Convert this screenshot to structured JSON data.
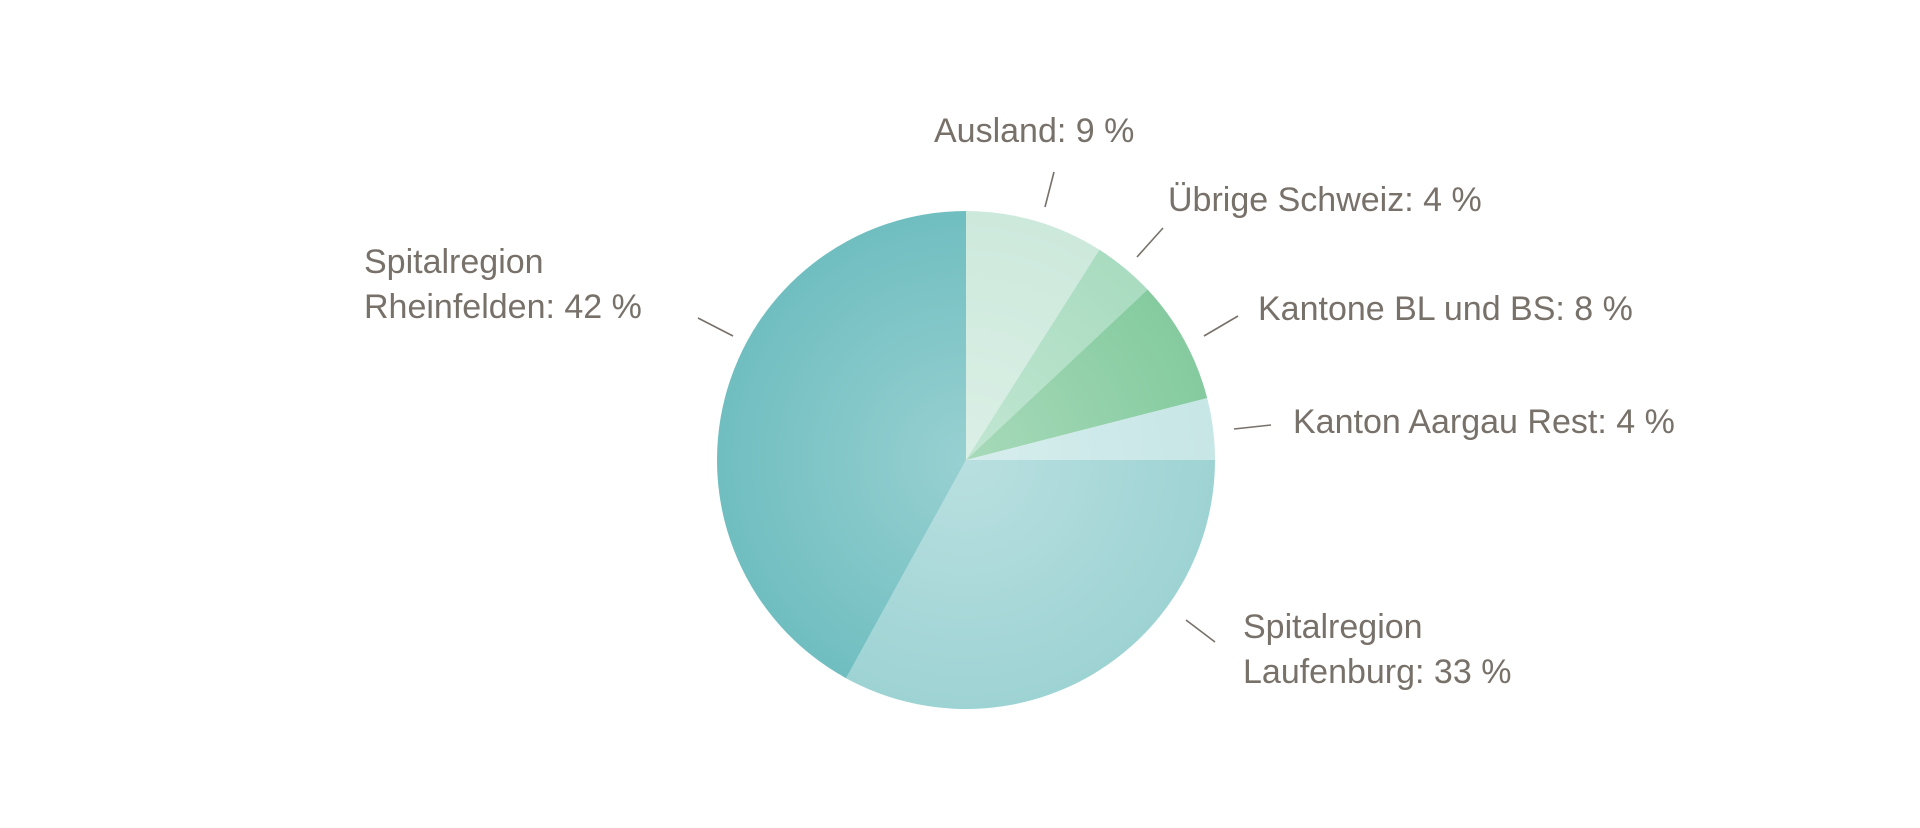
{
  "chart_data": {
    "type": "pie",
    "title": "",
    "start_angle": "12 o'clock",
    "direction": "clockwise",
    "slices": [
      {
        "label_lines": [
          "Ausland: 9 %"
        ],
        "value": 9,
        "color": "#cde9dc"
      },
      {
        "label_lines": [
          "Übrige Schweiz: 4 %"
        ],
        "value": 4,
        "color": "#a9dcc0"
      },
      {
        "label_lines": [
          "Kantone BL und BS: 8 %"
        ],
        "value": 8,
        "color": "#85cb9f"
      },
      {
        "label_lines": [
          "Kanton Aargau Rest: 4 %"
        ],
        "value": 4,
        "color": "#c7e6e6"
      },
      {
        "label_lines": [
          "Spitalregion",
          "Laufenburg: 33 %"
        ],
        "value": 33,
        "color": "#9ed3d4"
      },
      {
        "label_lines": [
          "Spitalregion",
          "Rheinfelden: 42 %"
        ],
        "value": 42,
        "color": "#70bec0"
      }
    ]
  }
}
